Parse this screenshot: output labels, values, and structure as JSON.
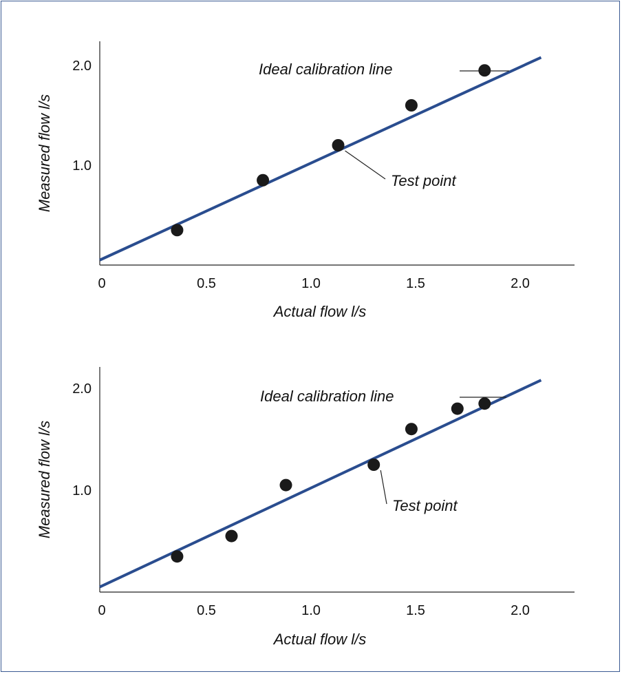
{
  "chart_data": [
    {
      "type": "scatter",
      "xlabel": "Actual flow l/s",
      "ylabel": "Measured flow l/s",
      "xlim": [
        0,
        2.25
      ],
      "ylim": [
        0,
        2.2
      ],
      "x_ticks": [
        "0",
        "0.5",
        "1.0",
        "1.5",
        "2.0"
      ],
      "x_tick_values": [
        0,
        0.5,
        1.0,
        1.5,
        2.0
      ],
      "y_ticks": [
        "1.0",
        "2.0"
      ],
      "y_tick_values": [
        1.0,
        2.0
      ],
      "grid": false,
      "ideal_line": {
        "x": [
          0,
          2.1
        ],
        "y": [
          0.05,
          2.08
        ]
      },
      "points": [
        {
          "x": 0.36,
          "y": 0.35
        },
        {
          "x": 0.77,
          "y": 0.85
        },
        {
          "x": 1.13,
          "y": 1.2
        },
        {
          "x": 1.48,
          "y": 1.6
        },
        {
          "x": 1.83,
          "y": 1.95
        }
      ],
      "annotations": {
        "ideal_line_label": "Ideal calibration line",
        "test_point_label": "Test point"
      },
      "test_point_index": 2
    },
    {
      "type": "scatter",
      "xlabel": "Actual flow l/s",
      "ylabel": "Measured flow l/s",
      "xlim": [
        0,
        2.25
      ],
      "ylim": [
        0,
        2.2
      ],
      "x_ticks": [
        "0",
        "0.5",
        "1.0",
        "1.5",
        "2.0"
      ],
      "x_tick_values": [
        0,
        0.5,
        1.0,
        1.5,
        2.0
      ],
      "y_ticks": [
        "1.0",
        "2.0"
      ],
      "y_tick_values": [
        1.0,
        2.0
      ],
      "grid": false,
      "ideal_line": {
        "x": [
          0,
          2.1
        ],
        "y": [
          0.05,
          2.08
        ]
      },
      "points": [
        {
          "x": 0.36,
          "y": 0.35
        },
        {
          "x": 0.62,
          "y": 0.55
        },
        {
          "x": 0.88,
          "y": 1.05
        },
        {
          "x": 1.3,
          "y": 1.25
        },
        {
          "x": 1.48,
          "y": 1.6
        },
        {
          "x": 1.7,
          "y": 1.8
        },
        {
          "x": 1.83,
          "y": 1.85
        }
      ],
      "annotations": {
        "ideal_line_label": "Ideal calibration line",
        "test_point_label": "Test point"
      },
      "test_point_index": 3
    }
  ]
}
